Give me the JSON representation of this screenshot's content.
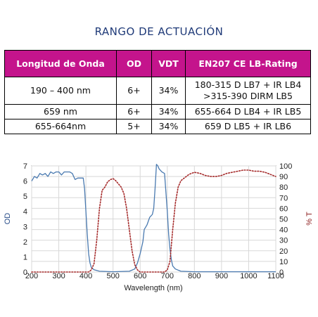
{
  "header": {
    "title": "RANGO DE ACTUACIÓN"
  },
  "table": {
    "columns": [
      "Longitud de Onda",
      "OD",
      "VDT",
      "EN207 CE LB-Rating"
    ],
    "rows": [
      {
        "wavelength": "190 – 400 nm",
        "od": "6+",
        "vdt": "34%",
        "rating": [
          "180-315 D LB7 + IR LB4",
          ">315-390 DIRM LB5"
        ]
      },
      {
        "wavelength": "659 nm",
        "od": "6+",
        "vdt": "34%",
        "rating": [
          "655-664 D LB4 + IR LB5"
        ]
      },
      {
        "wavelength": "655-664nm",
        "od": "5+",
        "vdt": "34%",
        "rating": [
          "659 D LB5 + IR LB6"
        ]
      }
    ]
  },
  "chart_data": {
    "type": "line",
    "xlabel": "Wavelength (nm)",
    "ylabel_left": "OD",
    "ylabel_right": "% T",
    "xlim": [
      200,
      1100
    ],
    "ylim_left": [
      0,
      7
    ],
    "ylim_right": [
      0,
      100
    ],
    "x_ticks": [
      "200",
      "300",
      "400",
      "500",
      "600",
      "700",
      "800",
      "900",
      "1000",
      "1100"
    ],
    "y_left_ticks": [
      "0",
      "1",
      "2",
      "3",
      "4",
      "5",
      "6",
      "7"
    ],
    "y_right_ticks": [
      "0",
      "10",
      "20",
      "30",
      "40",
      "50",
      "60",
      "70",
      "80",
      "90",
      "100"
    ],
    "grid": true,
    "colors": {
      "od": "#4a7ab0",
      "transmission": "#a52a2a",
      "left_axis": "#2a4e8a",
      "right_axis": "#8b1a1a"
    },
    "series": [
      {
        "axis": "left",
        "style": "solid",
        "points": [
          [
            200,
            6.0
          ],
          [
            210,
            6.3
          ],
          [
            220,
            6.2
          ],
          [
            230,
            6.5
          ],
          [
            240,
            6.4
          ],
          [
            250,
            6.5
          ],
          [
            260,
            6.3
          ],
          [
            270,
            6.6
          ],
          [
            280,
            6.5
          ],
          [
            290,
            6.6
          ],
          [
            300,
            6.6
          ],
          [
            310,
            6.4
          ],
          [
            320,
            6.6
          ],
          [
            340,
            6.6
          ],
          [
            350,
            6.5
          ],
          [
            360,
            6.1
          ],
          [
            370,
            6.2
          ],
          [
            380,
            6.2
          ],
          [
            390,
            6.2
          ],
          [
            395,
            5.5
          ],
          [
            400,
            4.0
          ],
          [
            405,
            2.5
          ],
          [
            410,
            1.2
          ],
          [
            415,
            0.6
          ],
          [
            420,
            0.3
          ],
          [
            430,
            0.15
          ],
          [
            450,
            0.05
          ],
          [
            500,
            0.02
          ],
          [
            560,
            0.05
          ],
          [
            580,
            0.2
          ],
          [
            590,
            0.6
          ],
          [
            600,
            1.2
          ],
          [
            610,
            2.0
          ],
          [
            615,
            2.8
          ],
          [
            625,
            3.1
          ],
          [
            635,
            3.6
          ],
          [
            645,
            3.8
          ],
          [
            650,
            4.2
          ],
          [
            655,
            5.5
          ],
          [
            660,
            7.1
          ],
          [
            665,
            7.0
          ],
          [
            670,
            6.8
          ],
          [
            680,
            6.6
          ],
          [
            690,
            6.5
          ],
          [
            700,
            4.0
          ],
          [
            705,
            2.5
          ],
          [
            710,
            1.5
          ],
          [
            715,
            0.8
          ],
          [
            720,
            0.4
          ],
          [
            730,
            0.2
          ],
          [
            750,
            0.05
          ],
          [
            800,
            0.02
          ],
          [
            1100,
            0.02
          ]
        ]
      },
      {
        "axis": "right",
        "style": "dotted",
        "points": [
          [
            200,
            0
          ],
          [
            410,
            0
          ],
          [
            420,
            2
          ],
          [
            430,
            8
          ],
          [
            440,
            30
          ],
          [
            450,
            60
          ],
          [
            460,
            77
          ],
          [
            470,
            80
          ],
          [
            480,
            85
          ],
          [
            490,
            87
          ],
          [
            500,
            88
          ],
          [
            510,
            86
          ],
          [
            520,
            83
          ],
          [
            530,
            80
          ],
          [
            540,
            74
          ],
          [
            550,
            60
          ],
          [
            560,
            40
          ],
          [
            570,
            20
          ],
          [
            580,
            7
          ],
          [
            590,
            2
          ],
          [
            600,
            0
          ],
          [
            690,
            0
          ],
          [
            700,
            2
          ],
          [
            710,
            10
          ],
          [
            720,
            40
          ],
          [
            730,
            65
          ],
          [
            740,
            80
          ],
          [
            750,
            86
          ],
          [
            760,
            88
          ],
          [
            780,
            92
          ],
          [
            800,
            94
          ],
          [
            820,
            93
          ],
          [
            840,
            91
          ],
          [
            860,
            90
          ],
          [
            880,
            90
          ],
          [
            900,
            91
          ],
          [
            920,
            93
          ],
          [
            940,
            94
          ],
          [
            960,
            95
          ],
          [
            980,
            96
          ],
          [
            1000,
            96
          ],
          [
            1020,
            95
          ],
          [
            1040,
            95
          ],
          [
            1060,
            94
          ],
          [
            1080,
            92
          ],
          [
            1100,
            90
          ]
        ]
      }
    ]
  }
}
